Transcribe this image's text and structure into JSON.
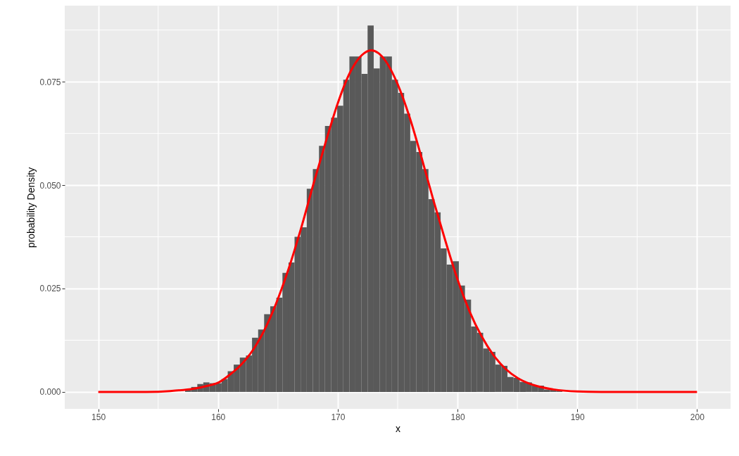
{
  "chart_data": {
    "type": "histogram",
    "xlabel": "x",
    "ylabel": "probability Density",
    "bins": [
      157.25,
      157.76,
      158.27,
      158.77,
      159.28,
      159.79,
      160.3,
      160.81,
      161.31,
      161.82,
      162.33,
      162.84,
      163.35,
      163.85,
      164.36,
      164.87,
      165.38,
      165.89,
      166.39,
      166.9,
      167.41,
      167.92,
      168.43,
      168.93,
      169.44,
      169.95,
      170.46,
      170.97,
      171.47,
      171.98,
      172.49,
      173.0,
      173.51,
      174.01,
      174.52,
      175.03,
      175.54,
      176.05,
      176.55,
      177.06,
      177.57,
      178.08,
      178.59,
      179.09,
      179.6,
      180.11,
      180.62,
      181.13,
      181.63,
      182.14,
      182.65,
      183.16,
      183.67,
      184.17,
      184.68,
      185.19,
      185.7,
      186.21,
      186.71,
      187.22,
      187.73,
      188.24,
      188.75,
      189.25,
      189.76
    ],
    "values": [
      0.0005,
      0.0012,
      0.0019,
      0.0023,
      0.0021,
      0.0021,
      0.0031,
      0.005,
      0.0066,
      0.0083,
      0.0088,
      0.0131,
      0.0151,
      0.0188,
      0.0207,
      0.0228,
      0.0288,
      0.0313,
      0.0375,
      0.0398,
      0.0491,
      0.0539,
      0.0595,
      0.0643,
      0.0663,
      0.0692,
      0.0755,
      0.0811,
      0.0811,
      0.0769,
      0.0886,
      0.0782,
      0.0811,
      0.0811,
      0.0755,
      0.0723,
      0.0673,
      0.0607,
      0.058,
      0.0539,
      0.0466,
      0.0434,
      0.0347,
      0.0308,
      0.0316,
      0.0257,
      0.0223,
      0.0158,
      0.0143,
      0.0105,
      0.0097,
      0.0066,
      0.0063,
      0.0036,
      0.0034,
      0.0024,
      0.0023,
      0.0015,
      0.0015,
      0.0006,
      0.0005,
      0.0003,
      null,
      0.0001
    ],
    "color": "#595959",
    "series": [
      {
        "type": "line",
        "color": "#ff0000",
        "x": [
          150,
          154,
          156,
          158,
          159,
          160,
          161,
          162,
          163,
          164,
          165,
          166,
          167,
          168,
          169,
          170,
          171,
          172,
          172.8,
          174,
          175,
          176,
          177,
          178,
          179,
          180,
          181,
          182,
          183,
          184,
          185,
          186,
          188,
          190,
          192,
          196,
          200
        ],
        "values": [
          0.0,
          0.0,
          0.0002,
          0.0008,
          0.0014,
          0.0022,
          0.0042,
          0.0068,
          0.0105,
          0.0157,
          0.0225,
          0.0307,
          0.0402,
          0.0506,
          0.0605,
          0.0698,
          0.0771,
          0.0814,
          0.0826,
          0.08,
          0.0744,
          0.0664,
          0.0566,
          0.0462,
          0.0364,
          0.0272,
          0.0195,
          0.0135,
          0.0089,
          0.0056,
          0.0034,
          0.002,
          0.0006,
          0.0001,
          0.0,
          0.0,
          0.0
        ]
      }
    ],
    "xlim": [
      147.2,
      202.8
    ],
    "ylim": [
      -0.0041,
      0.0934
    ],
    "xticks": [
      150,
      {
        "value": 155,
        "label": null
      },
      160,
      {
        "value": 165,
        "label": null
      },
      170,
      {
        "value": 175,
        "label": null
      },
      180,
      {
        "value": 185,
        "label": null
      },
      190,
      {
        "value": 195,
        "label": null
      },
      200
    ],
    "yticks": [
      {
        "value": 0,
        "label": "0.000"
      },
      {
        "value": 0.0125,
        "label": null
      },
      {
        "value": 0.025,
        "label": "0.025"
      },
      {
        "value": 0.0375,
        "label": null
      },
      {
        "value": 0.05,
        "label": "0.050"
      },
      {
        "value": 0.0625,
        "label": null
      },
      {
        "value": 0.075,
        "label": "0.075"
      },
      {
        "value": 0.0875,
        "label": null
      }
    ],
    "grid": true
  }
}
